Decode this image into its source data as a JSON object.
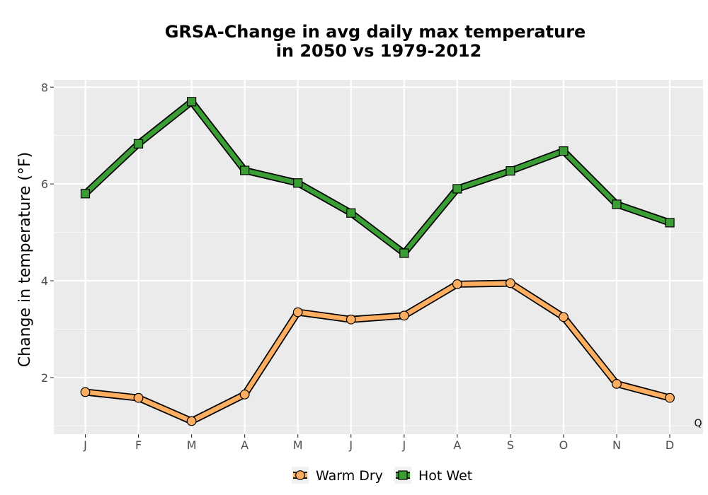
{
  "chart_data": {
    "type": "line",
    "title_line1": "GRSA-Change in avg daily max temperature",
    "title_line2": "in 2050 vs 1979-2012",
    "xlabel": "",
    "ylabel": "Change in temperature (°F)",
    "categories": [
      "J",
      "F",
      "M",
      "A",
      "M",
      "J",
      "J",
      "A",
      "S",
      "O",
      "N",
      "D"
    ],
    "yticks": [
      2,
      4,
      6,
      8
    ],
    "ylim": [
      0.83,
      8.15
    ],
    "grid": true,
    "legend_position": "bottom",
    "corner_label": "Q",
    "series": [
      {
        "name": "Warm Dry",
        "color": "#fdae61",
        "marker": "circle",
        "values": [
          1.7,
          1.58,
          1.1,
          1.65,
          3.35,
          3.2,
          3.28,
          3.93,
          3.95,
          3.25,
          1.87,
          1.58
        ]
      },
      {
        "name": "Hot Wet",
        "color": "#3a9e35",
        "marker": "square",
        "values": [
          5.8,
          6.83,
          7.7,
          6.28,
          6.02,
          5.4,
          4.57,
          5.9,
          6.27,
          6.68,
          5.58,
          5.2
        ]
      }
    ]
  }
}
